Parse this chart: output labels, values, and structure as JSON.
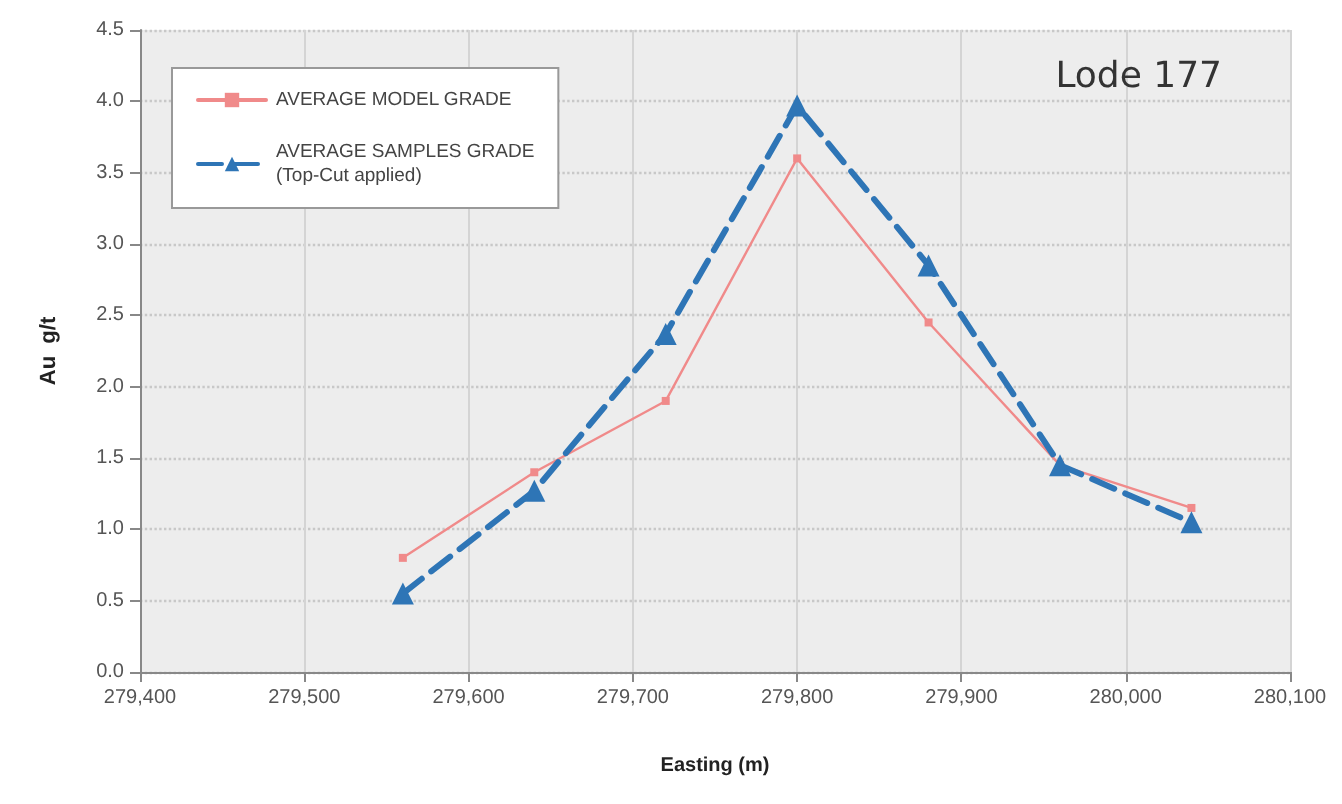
{
  "chart_data": {
    "type": "line",
    "title": "Lode 177",
    "xlabel": "Easting (m)",
    "ylabel": "Au  g/t",
    "x": [
      279560,
      279640,
      279720,
      279800,
      279880,
      279960,
      280040
    ],
    "series": [
      {
        "name": "AVERAGE MODEL GRADE",
        "color": "#f08a8a",
        "marker": "square",
        "line_style": "solid",
        "values": [
          0.8,
          1.4,
          1.9,
          3.6,
          2.45,
          1.45,
          1.15
        ]
      },
      {
        "name": "AVERAGE SAMPLES GRADE\n(Top-Cut applied)",
        "color": "#2e75b6",
        "marker": "triangle",
        "line_style": "dashed",
        "values": [
          0.55,
          1.27,
          2.37,
          3.97,
          2.85,
          1.45,
          1.05
        ]
      }
    ],
    "xlim": [
      279400,
      280100
    ],
    "xticks": [
      {
        "value": 279400,
        "label": "279,400"
      },
      {
        "value": 279500,
        "label": "279,500"
      },
      {
        "value": 279600,
        "label": "279,600"
      },
      {
        "value": 279700,
        "label": "279,700"
      },
      {
        "value": 279800,
        "label": "279,800"
      },
      {
        "value": 279900,
        "label": "279,900"
      },
      {
        "value": 280000,
        "label": "280,000"
      },
      {
        "value": 280100,
        "label": "280,100"
      }
    ],
    "ylim": [
      0,
      4.5
    ],
    "yticks": [
      {
        "value": 0,
        "label": "0.0"
      },
      {
        "value": 0.5,
        "label": "0.5"
      },
      {
        "value": 1,
        "label": "1.0"
      },
      {
        "value": 1.5,
        "label": "1.5"
      },
      {
        "value": 2,
        "label": "2.0"
      },
      {
        "value": 2.5,
        "label": "2.5"
      },
      {
        "value": 3,
        "label": "3.0"
      },
      {
        "value": 3.5,
        "label": "3.5"
      },
      {
        "value": 4,
        "label": "4.0"
      },
      {
        "value": 4.5,
        "label": "4.5"
      }
    ],
    "grid": true,
    "legend": "top left"
  }
}
